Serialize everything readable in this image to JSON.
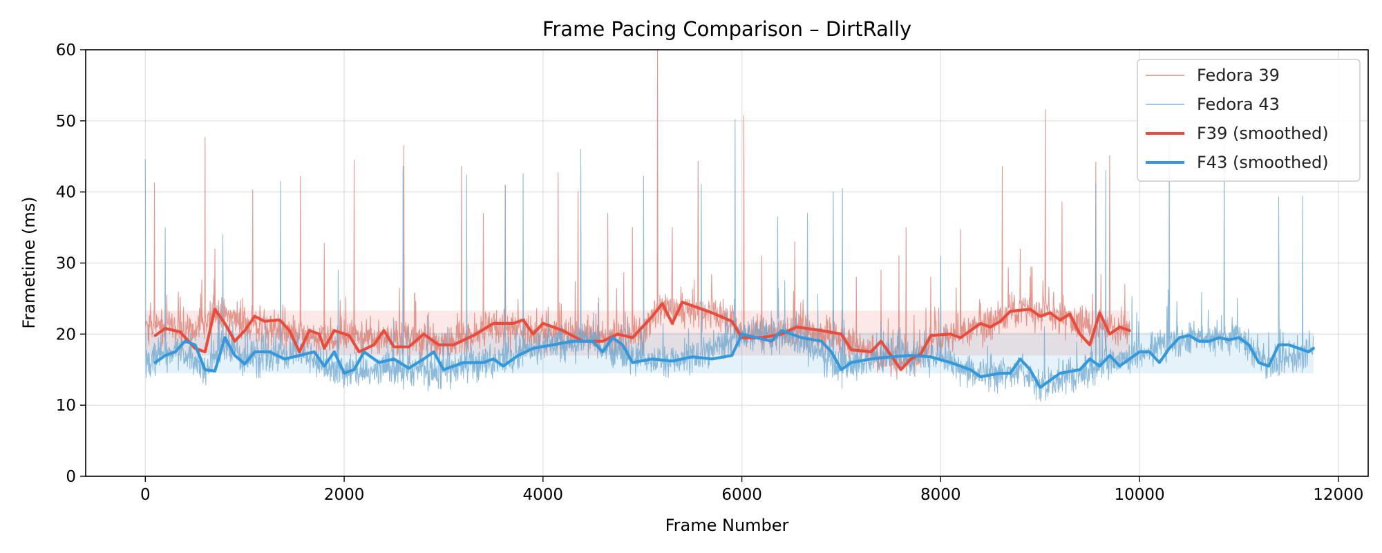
{
  "chart_data": {
    "type": "line",
    "title": "Frame Pacing Comparison – DirtRally",
    "xlabel": "Frame Number",
    "ylabel": "Frametime (ms)",
    "xlim": [
      -600,
      12300
    ],
    "ylim": [
      0,
      60
    ],
    "xticks": [
      0,
      2000,
      4000,
      6000,
      8000,
      10000,
      12000
    ],
    "yticks": [
      0,
      10,
      20,
      30,
      40,
      50,
      60
    ],
    "grid": true,
    "legend_position": "top-right",
    "colors": {
      "f39_raw": "#d9776b",
      "f43_raw": "#6fa8d0",
      "f39_smooth": "#e74c3c",
      "f43_smooth": "#3498db"
    },
    "bands": [
      {
        "name": "Fedora 39 band",
        "x": [
          0,
          9900
        ],
        "y": [
          17,
          23.3
        ],
        "color": "#e74c3c"
      },
      {
        "name": "Fedora 43 band",
        "x": [
          0,
          11750
        ],
        "y": [
          14.5,
          20.2
        ],
        "color": "#3498db"
      }
    ],
    "series": [
      {
        "name": "Fedora 39",
        "kind": "raw",
        "n_frames": 9900,
        "base": [
          [
            0,
            21.5
          ],
          [
            500,
            20.5
          ],
          [
            700,
            23
          ],
          [
            1000,
            21.5
          ],
          [
            1500,
            20
          ],
          [
            2000,
            19.5
          ],
          [
            2500,
            19.5
          ],
          [
            3000,
            18.5
          ],
          [
            3500,
            21
          ],
          [
            4000,
            20
          ],
          [
            4500,
            19.5
          ],
          [
            5000,
            20
          ],
          [
            5200,
            24
          ],
          [
            5500,
            23.5
          ],
          [
            5800,
            22.5
          ],
          [
            6000,
            20
          ],
          [
            6500,
            20.5
          ],
          [
            7000,
            19.5
          ],
          [
            7500,
            16
          ],
          [
            7700,
            16.5
          ],
          [
            8000,
            19.5
          ],
          [
            8500,
            21.5
          ],
          [
            8800,
            23.5
          ],
          [
            9200,
            22.5
          ],
          [
            9500,
            21
          ],
          [
            9900,
            20.5
          ]
        ],
        "noise": 2.4,
        "spikes": [
          [
            90,
            41.3
          ],
          [
            600,
            47.7
          ],
          [
            700,
            32
          ],
          [
            1080,
            40.3
          ],
          [
            1560,
            42.2
          ],
          [
            1800,
            32.8
          ],
          [
            2100,
            44.5
          ],
          [
            2600,
            46.5
          ],
          [
            3180,
            43.6
          ],
          [
            3400,
            37
          ],
          [
            3620,
            41
          ],
          [
            4150,
            42.7
          ],
          [
            4350,
            40
          ],
          [
            4650,
            37
          ],
          [
            4900,
            35
          ],
          [
            5150,
            60
          ],
          [
            5300,
            35
          ],
          [
            5560,
            44.3
          ],
          [
            6020,
            50.7
          ],
          [
            6200,
            31
          ],
          [
            6530,
            33
          ],
          [
            7150,
            28
          ],
          [
            7400,
            29
          ],
          [
            7580,
            31
          ],
          [
            7650,
            35
          ],
          [
            7900,
            28
          ],
          [
            8200,
            34.7
          ],
          [
            8620,
            43.6
          ],
          [
            8800,
            32
          ],
          [
            9050,
            51.6
          ],
          [
            9220,
            38.6
          ],
          [
            9560,
            44.2
          ],
          [
            9700,
            45.1
          ],
          [
            9850,
            27
          ]
        ]
      },
      {
        "name": "Fedora 43",
        "kind": "raw",
        "n_frames": 11750,
        "base": [
          [
            0,
            16
          ],
          [
            300,
            18
          ],
          [
            600,
            15
          ],
          [
            800,
            19
          ],
          [
            1000,
            16.5
          ],
          [
            1500,
            17.5
          ],
          [
            2000,
            14.5
          ],
          [
            2500,
            15
          ],
          [
            3000,
            14.8
          ],
          [
            3500,
            16
          ],
          [
            4000,
            18.5
          ],
          [
            4500,
            19
          ],
          [
            5000,
            16
          ],
          [
            5500,
            16.5
          ],
          [
            6000,
            20
          ],
          [
            6500,
            19.5
          ],
          [
            7000,
            15.5
          ],
          [
            7500,
            17
          ],
          [
            8000,
            16.5
          ],
          [
            8500,
            14
          ],
          [
            8800,
            15
          ],
          [
            9000,
            12.5
          ],
          [
            9500,
            15
          ],
          [
            10000,
            17.5
          ],
          [
            10500,
            19.5
          ],
          [
            11000,
            19.5
          ],
          [
            11300,
            15.5
          ],
          [
            11750,
            18
          ]
        ],
        "noise": 2.3,
        "spikes": [
          [
            0,
            44.6
          ],
          [
            200,
            35
          ],
          [
            780,
            34
          ],
          [
            1360,
            41.5
          ],
          [
            1940,
            29
          ],
          [
            2590,
            43.6
          ],
          [
            3230,
            42.4
          ],
          [
            3620,
            40.9
          ],
          [
            3800,
            42.6
          ],
          [
            4380,
            46
          ],
          [
            5010,
            42.2
          ],
          [
            5590,
            41.1
          ],
          [
            5930,
            50.2
          ],
          [
            6360,
            36.5
          ],
          [
            6660,
            37
          ],
          [
            6920,
            40
          ],
          [
            7010,
            40.5
          ],
          [
            8000,
            31
          ],
          [
            9560,
            41
          ],
          [
            9660,
            43
          ],
          [
            10300,
            47
          ],
          [
            10850,
            46.5
          ],
          [
            11400,
            39.3
          ],
          [
            11640,
            39.4
          ]
        ]
      },
      {
        "name": "F39 (smoothed)",
        "kind": "smoothed",
        "points": [
          [
            100,
            19.8
          ],
          [
            200,
            20.8
          ],
          [
            350,
            20.3
          ],
          [
            500,
            18
          ],
          [
            600,
            17.5
          ],
          [
            700,
            23.5
          ],
          [
            800,
            21.5
          ],
          [
            900,
            19
          ],
          [
            1000,
            20.5
          ],
          [
            1100,
            22.5
          ],
          [
            1200,
            21.8
          ],
          [
            1350,
            22
          ],
          [
            1450,
            20.5
          ],
          [
            1550,
            17.5
          ],
          [
            1650,
            20.5
          ],
          [
            1750,
            20
          ],
          [
            1800,
            18
          ],
          [
            1900,
            20.5
          ],
          [
            2050,
            19.8
          ],
          [
            2150,
            17.5
          ],
          [
            2300,
            18.5
          ],
          [
            2400,
            20.5
          ],
          [
            2500,
            18.2
          ],
          [
            2650,
            18.2
          ],
          [
            2800,
            20
          ],
          [
            2950,
            18.5
          ],
          [
            3100,
            18.5
          ],
          [
            3300,
            19.8
          ],
          [
            3500,
            21.5
          ],
          [
            3700,
            21.5
          ],
          [
            3800,
            22
          ],
          [
            3900,
            20
          ],
          [
            4000,
            21.5
          ],
          [
            4200,
            20.5
          ],
          [
            4400,
            19
          ],
          [
            4600,
            19
          ],
          [
            4750,
            20
          ],
          [
            4900,
            19.5
          ],
          [
            5100,
            22.5
          ],
          [
            5200,
            24.3
          ],
          [
            5300,
            21.5
          ],
          [
            5400,
            24.5
          ],
          [
            5500,
            24
          ],
          [
            5700,
            23
          ],
          [
            5900,
            21.8
          ],
          [
            6000,
            19.5
          ],
          [
            6200,
            19.5
          ],
          [
            6400,
            20
          ],
          [
            6550,
            21
          ],
          [
            6800,
            20.5
          ],
          [
            7000,
            20
          ],
          [
            7100,
            17.8
          ],
          [
            7300,
            17.5
          ],
          [
            7400,
            19
          ],
          [
            7500,
            17
          ],
          [
            7600,
            15
          ],
          [
            7700,
            16.5
          ],
          [
            7800,
            17.2
          ],
          [
            7900,
            19.8
          ],
          [
            8100,
            20
          ],
          [
            8200,
            19.5
          ],
          [
            8400,
            21.5
          ],
          [
            8500,
            21
          ],
          [
            8600,
            21.8
          ],
          [
            8700,
            23.2
          ],
          [
            8900,
            23.5
          ],
          [
            9000,
            22.5
          ],
          [
            9100,
            23
          ],
          [
            9200,
            22
          ],
          [
            9300,
            22.8
          ],
          [
            9400,
            20
          ],
          [
            9500,
            18.5
          ],
          [
            9600,
            23
          ],
          [
            9700,
            20
          ],
          [
            9800,
            21
          ],
          [
            9900,
            20.5
          ]
        ]
      },
      {
        "name": "F43 (smoothed)",
        "kind": "smoothed",
        "points": [
          [
            100,
            16
          ],
          [
            200,
            17
          ],
          [
            300,
            17.5
          ],
          [
            400,
            19
          ],
          [
            500,
            18.5
          ],
          [
            600,
            15
          ],
          [
            700,
            14.8
          ],
          [
            800,
            19.5
          ],
          [
            900,
            17
          ],
          [
            1000,
            15.8
          ],
          [
            1100,
            17.5
          ],
          [
            1250,
            17.5
          ],
          [
            1400,
            16.5
          ],
          [
            1550,
            17
          ],
          [
            1700,
            17.5
          ],
          [
            1800,
            15.5
          ],
          [
            1900,
            17.5
          ],
          [
            2000,
            14.5
          ],
          [
            2100,
            15
          ],
          [
            2200,
            17.5
          ],
          [
            2350,
            16
          ],
          [
            2500,
            16.5
          ],
          [
            2650,
            15.2
          ],
          [
            2800,
            16.5
          ],
          [
            2900,
            17.5
          ],
          [
            3000,
            15
          ],
          [
            3200,
            16
          ],
          [
            3400,
            16
          ],
          [
            3500,
            16.5
          ],
          [
            3600,
            15.5
          ],
          [
            3750,
            17
          ],
          [
            3900,
            18
          ],
          [
            4100,
            18.5
          ],
          [
            4300,
            19
          ],
          [
            4500,
            19
          ],
          [
            4600,
            17.5
          ],
          [
            4700,
            19.5
          ],
          [
            4800,
            18.5
          ],
          [
            4900,
            16
          ],
          [
            5100,
            16.5
          ],
          [
            5300,
            16.2
          ],
          [
            5500,
            16.8
          ],
          [
            5700,
            16.5
          ],
          [
            5900,
            17
          ],
          [
            6000,
            20
          ],
          [
            6150,
            19.5
          ],
          [
            6300,
            19
          ],
          [
            6400,
            20.5
          ],
          [
            6600,
            19.5
          ],
          [
            6800,
            19
          ],
          [
            6900,
            17.5
          ],
          [
            7000,
            15
          ],
          [
            7100,
            16
          ],
          [
            7300,
            16.5
          ],
          [
            7500,
            16.8
          ],
          [
            7700,
            17
          ],
          [
            7900,
            16.8
          ],
          [
            8100,
            16
          ],
          [
            8300,
            15
          ],
          [
            8400,
            14
          ],
          [
            8600,
            14.5
          ],
          [
            8700,
            14.5
          ],
          [
            8800,
            16.5
          ],
          [
            8900,
            15
          ],
          [
            9000,
            12.5
          ],
          [
            9200,
            14.5
          ],
          [
            9400,
            15
          ],
          [
            9500,
            16.5
          ],
          [
            9600,
            15.5
          ],
          [
            9700,
            17
          ],
          [
            9800,
            15.5
          ],
          [
            9900,
            16.5
          ],
          [
            10000,
            17.5
          ],
          [
            10100,
            17.5
          ],
          [
            10200,
            16
          ],
          [
            10300,
            18
          ],
          [
            10400,
            19.5
          ],
          [
            10500,
            19.8
          ],
          [
            10600,
            19
          ],
          [
            10700,
            19
          ],
          [
            10800,
            19.5
          ],
          [
            10900,
            19.2
          ],
          [
            11000,
            19.5
          ],
          [
            11100,
            18.5
          ],
          [
            11200,
            16
          ],
          [
            11300,
            15.5
          ],
          [
            11400,
            18.5
          ],
          [
            11500,
            18.5
          ],
          [
            11600,
            18
          ],
          [
            11700,
            17.5
          ],
          [
            11750,
            18
          ]
        ]
      }
    ],
    "legend": [
      "Fedora 39",
      "Fedora 43",
      "F39 (smoothed)",
      "F43 (smoothed)"
    ]
  }
}
